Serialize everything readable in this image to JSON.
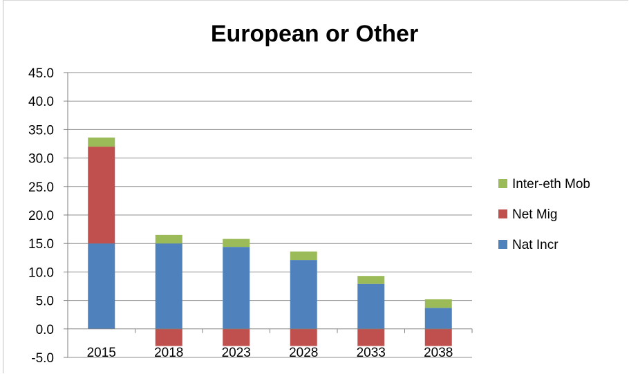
{
  "chart_data": {
    "type": "bar",
    "stacked": true,
    "title": "European or Other",
    "xlabel": "",
    "ylabel": "",
    "categories": [
      "2015",
      "2018",
      "2023",
      "2028",
      "2033",
      "2038"
    ],
    "ylim": [
      -5.0,
      45.0
    ],
    "ytick_step": 5,
    "yticks": [
      "45.0",
      "40.0",
      "35.0",
      "30.0",
      "25.0",
      "20.0",
      "15.0",
      "10.0",
      "5.0",
      "0.0",
      "-5.0"
    ],
    "grid": true,
    "legend_position": "right",
    "series": [
      {
        "name": "Nat Incr",
        "color": "#4f81bd",
        "values": [
          15.0,
          15.0,
          14.4,
          12.1,
          7.9,
          3.7
        ]
      },
      {
        "name": "Net Mig",
        "color": "#c0504d",
        "values": [
          17.0,
          -3.0,
          -3.0,
          -3.0,
          -3.0,
          -3.0
        ]
      },
      {
        "name": "Inter-eth Mob",
        "color": "#9bbb59",
        "values": [
          1.6,
          1.5,
          1.4,
          1.5,
          1.4,
          1.5
        ]
      }
    ]
  }
}
